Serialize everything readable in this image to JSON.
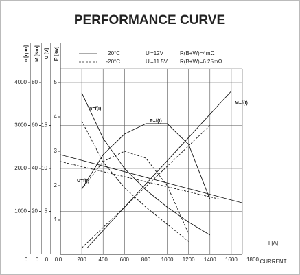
{
  "chart_data": {
    "type": "line",
    "title": "PERFORMANCE CURVE",
    "xlabel": "I [A]",
    "xlabel2": "CURRENT",
    "xlim": [
      0,
      1800
    ],
    "xticks": [
      0,
      200,
      400,
      600,
      800,
      1000,
      1200,
      1400,
      1600,
      1800
    ],
    "axes": [
      {
        "label": "n [rpm]",
        "ylim": [
          0,
          4000
        ],
        "yticks": [
          1000,
          2000,
          3000,
          4000
        ],
        "bottom": 0
      },
      {
        "label": "M [Nm]",
        "ylim": [
          0,
          80
        ],
        "yticks": [
          20,
          40,
          60,
          80
        ],
        "bottom": 0
      },
      {
        "label": "U [V]",
        "ylim": [
          0,
          20
        ],
        "yticks": [
          5,
          10,
          15
        ],
        "bottom": 0
      },
      {
        "label": "P [kw]",
        "ylim": [
          0,
          5
        ],
        "yticks": [
          1,
          2,
          3,
          4,
          5
        ],
        "bottom": 0
      }
    ],
    "legend": [
      {
        "label": "20°C",
        "dashed": false,
        "voltage": "Uᵢ=12V",
        "resistance": "R(B+W)=4mΩ"
      },
      {
        "label": "-20°C",
        "dashed": true,
        "voltage": "Uᵢ=11.5V",
        "resistance": "R(B+W)=6.25mΩ"
      }
    ],
    "annotations": [
      "n=f(I)",
      "P=f(I)",
      "M=f(I)",
      "U=f(I)"
    ],
    "series": [
      {
        "axis": 0,
        "dashed": false,
        "x": [
          200,
          400,
          600,
          800,
          1000,
          1200,
          1400
        ],
        "values": [
          3760,
          2700,
          2000,
          1500,
          1100,
          750,
          450
        ]
      },
      {
        "axis": 0,
        "dashed": true,
        "x": [
          200,
          400,
          600,
          800,
          1000,
          1200
        ],
        "values": [
          3100,
          2150,
          1550,
          1100,
          700,
          300
        ]
      },
      {
        "axis": 1,
        "dashed": false,
        "x": [
          250,
          1600
        ],
        "values": [
          3,
          76
        ]
      },
      {
        "axis": 1,
        "dashed": true,
        "x": [
          200,
          1400
        ],
        "values": [
          3,
          60
        ]
      },
      {
        "axis": 2,
        "dashed": false,
        "x": [
          0,
          1700
        ],
        "values": [
          11.6,
          6.0
        ]
      },
      {
        "axis": 2,
        "dashed": true,
        "x": [
          0,
          1500
        ],
        "values": [
          10.8,
          6.4
        ]
      },
      {
        "axis": 3,
        "dashed": false,
        "x": [
          200,
          400,
          600,
          800,
          1000,
          1200,
          1400
        ],
        "values": [
          1.9,
          2.9,
          3.5,
          3.8,
          3.8,
          3.2,
          1.6
        ]
      },
      {
        "axis": 3,
        "dashed": true,
        "x": [
          200,
          400,
          600,
          800,
          1000,
          1200
        ],
        "values": [
          1.9,
          2.7,
          3.0,
          2.8,
          2.0,
          0.6
        ]
      }
    ]
  }
}
